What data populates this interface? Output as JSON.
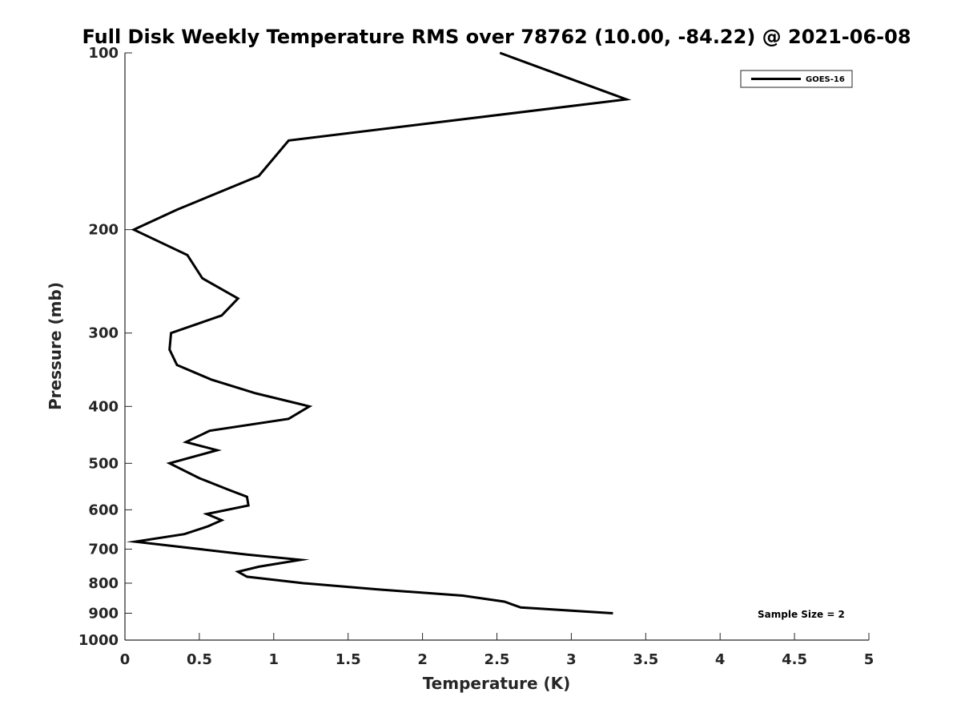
{
  "chart_data": {
    "type": "line",
    "title": "Full Disk Weekly Temperature RMS over 78762 (10.00, -84.22) @ 2021-06-08",
    "xlabel": "Temperature (K)",
    "ylabel": "Pressure (mb)",
    "xlim": [
      0,
      5
    ],
    "ylim": [
      100,
      1000
    ],
    "y_scale": "log",
    "y_reversed": true,
    "x_ticks": [
      "0",
      "0.5",
      "1",
      "1.5",
      "2",
      "2.5",
      "3",
      "3.5",
      "4",
      "4.5",
      "5"
    ],
    "x_tick_values": [
      0,
      0.5,
      1,
      1.5,
      2,
      2.5,
      3,
      3.5,
      4,
      4.5,
      5
    ],
    "y_ticks": [
      "100",
      "200",
      "300",
      "400",
      "500",
      "600",
      "700",
      "800",
      "900",
      "1000"
    ],
    "y_tick_values": [
      100,
      200,
      300,
      400,
      500,
      600,
      700,
      800,
      900,
      1000
    ],
    "grid": false,
    "legend_position": "top-right",
    "series": [
      {
        "name": "GOES-16",
        "color": "#000000",
        "points": [
          [
            2.52,
            100
          ],
          [
            3.37,
            120
          ],
          [
            1.1,
            141
          ],
          [
            0.9,
            162
          ],
          [
            0.35,
            185
          ],
          [
            0.06,
            200
          ],
          [
            0.42,
            221
          ],
          [
            0.52,
            242
          ],
          [
            0.76,
            262
          ],
          [
            0.65,
            280
          ],
          [
            0.31,
            300
          ],
          [
            0.3,
            320
          ],
          [
            0.35,
            340
          ],
          [
            0.58,
            360
          ],
          [
            0.88,
            380
          ],
          [
            1.24,
            400
          ],
          [
            1.1,
            420
          ],
          [
            0.57,
            440
          ],
          [
            0.41,
            460
          ],
          [
            0.62,
            475
          ],
          [
            0.3,
            500
          ],
          [
            0.5,
            530
          ],
          [
            0.7,
            555
          ],
          [
            0.82,
            570
          ],
          [
            0.83,
            590
          ],
          [
            0.55,
            610
          ],
          [
            0.65,
            625
          ],
          [
            0.56,
            640
          ],
          [
            0.4,
            660
          ],
          [
            0.07,
            680
          ],
          [
            0.82,
            715
          ],
          [
            1.18,
            730
          ],
          [
            0.9,
            750
          ],
          [
            0.76,
            765
          ],
          [
            0.82,
            780
          ],
          [
            1.2,
            800
          ],
          [
            1.7,
            820
          ],
          [
            2.27,
            840
          ],
          [
            2.55,
            860
          ],
          [
            2.66,
            880
          ],
          [
            3.28,
            900
          ]
        ]
      }
    ],
    "annotations": [
      {
        "text": "Sample Size = 2",
        "x": 4.33,
        "y": 900
      }
    ]
  }
}
